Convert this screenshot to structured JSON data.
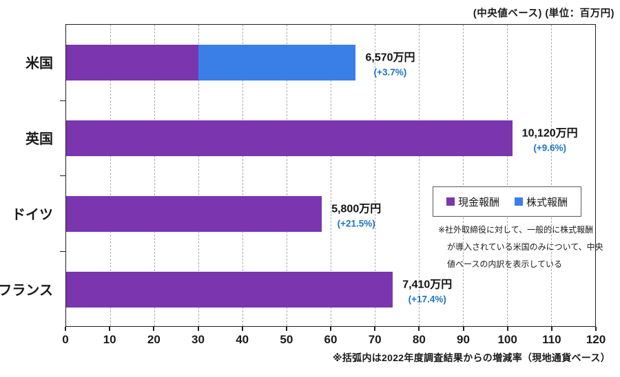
{
  "header": {
    "unit_note": "(中央値ベース) (単位：百万円)"
  },
  "chart_data": {
    "type": "bar",
    "orientation": "horizontal",
    "categories": [
      "米国",
      "英国",
      "ドイツ",
      "フランス"
    ],
    "series": [
      {
        "name": "現金報酬",
        "color": "#7B35AF",
        "values": [
          30,
          101.2,
          58,
          74.1
        ]
      },
      {
        "name": "株式報酬",
        "color": "#3A7EE8",
        "values": [
          35.7,
          0,
          0,
          0
        ]
      }
    ],
    "totals": [
      65.7,
      101.2,
      58,
      74.1
    ],
    "value_labels": [
      {
        "amount": "6,570万円",
        "change": "(+3.7%)"
      },
      {
        "amount": "10,120万円",
        "change": "(+9.6%)"
      },
      {
        "amount": "5,800万円",
        "change": "(+21.5%)"
      },
      {
        "amount": "7,410万円",
        "change": "(+17.4%)"
      }
    ],
    "xlim": [
      0,
      120
    ],
    "xtick_step": 10,
    "xtick_labels": [
      "0",
      "10",
      "20",
      "30",
      "40",
      "50",
      "60",
      "70",
      "80",
      "90",
      "100",
      "110",
      "120"
    ],
    "grid": "vertical-dashed",
    "legend_position": "inside-right-middle"
  },
  "colors": {
    "cash_bar": "#7B35AF",
    "stock_bar": "#3A7EE8",
    "change_text": "#1B74C8",
    "axis": "#1f1f1f",
    "grid": "#ababab"
  },
  "annotation": {
    "lines": [
      "※社外取締役に対して、一般的に株式報酬",
      "が導入されている米国のみについて、中央",
      "値ベースの内訳を表示している"
    ]
  },
  "footnote": {
    "text": "※括弧内は2022年度調査結果からの増減率（現地通貨ベース）"
  }
}
